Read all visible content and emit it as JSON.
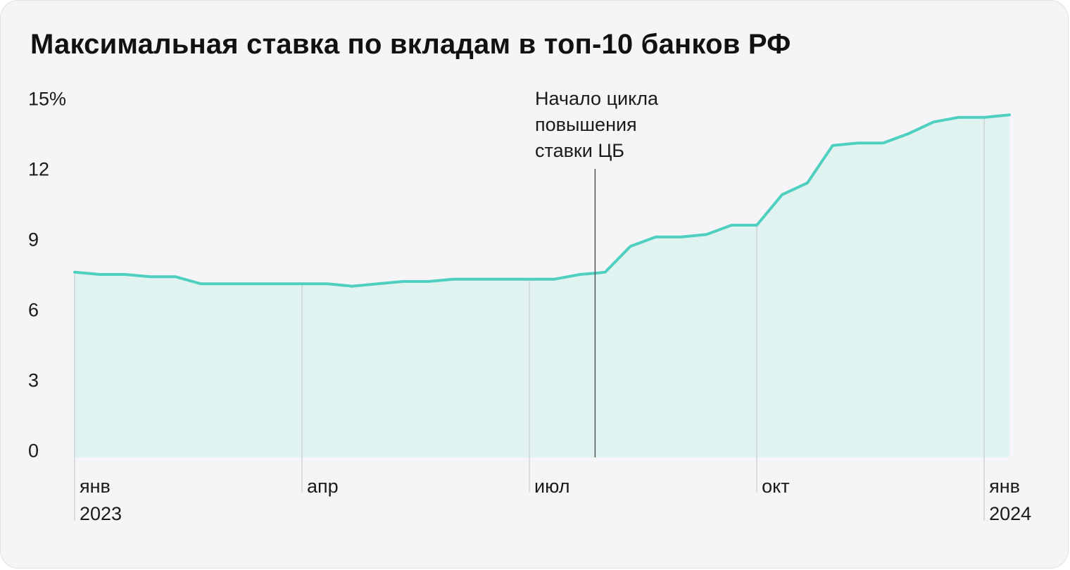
{
  "chart_data": {
    "type": "area",
    "title": "Максимальная ставка по вкладам в топ-10 банков РФ",
    "xlabel": "",
    "ylabel": "",
    "ylim": [
      0,
      15
    ],
    "y_ticks": [
      "0",
      "3",
      "6",
      "9",
      "12",
      "15%"
    ],
    "x_ticks": [
      {
        "label": "янв",
        "sublabel": "2023",
        "at": 0
      },
      {
        "label": "апр",
        "sublabel": "",
        "at": 9
      },
      {
        "label": "июл",
        "sublabel": "",
        "at": 18
      },
      {
        "label": "окт",
        "sublabel": "",
        "at": 27
      },
      {
        "label": "янв",
        "sublabel": "2024",
        "at": 36
      }
    ],
    "annotation": {
      "lines": [
        "Начало цикла",
        "повышения",
        "ставки ЦБ"
      ],
      "at": 20.6
    },
    "x": [
      0,
      1,
      2,
      3,
      4,
      5,
      6,
      7,
      8,
      9,
      10,
      11,
      12,
      13,
      14,
      15,
      16,
      17,
      18,
      19,
      20,
      20.6,
      21,
      22,
      23,
      24,
      25,
      26,
      27,
      28,
      29,
      30,
      31,
      32,
      33,
      34,
      35,
      36,
      37
    ],
    "values": [
      7.9,
      7.8,
      7.8,
      7.7,
      7.7,
      7.4,
      7.4,
      7.4,
      7.4,
      7.4,
      7.4,
      7.3,
      7.4,
      7.5,
      7.5,
      7.6,
      7.6,
      7.6,
      7.6,
      7.6,
      7.8,
      7.85,
      7.9,
      9.0,
      9.4,
      9.4,
      9.5,
      9.9,
      9.9,
      11.2,
      11.7,
      13.3,
      13.4,
      13.4,
      13.8,
      14.3,
      14.5,
      14.5,
      14.6
    ],
    "colors": {
      "line": "#4fcfc0",
      "fill": "#e0f3f0",
      "grid": "#c9cccf",
      "annotation": "#555555"
    },
    "grid": false
  }
}
